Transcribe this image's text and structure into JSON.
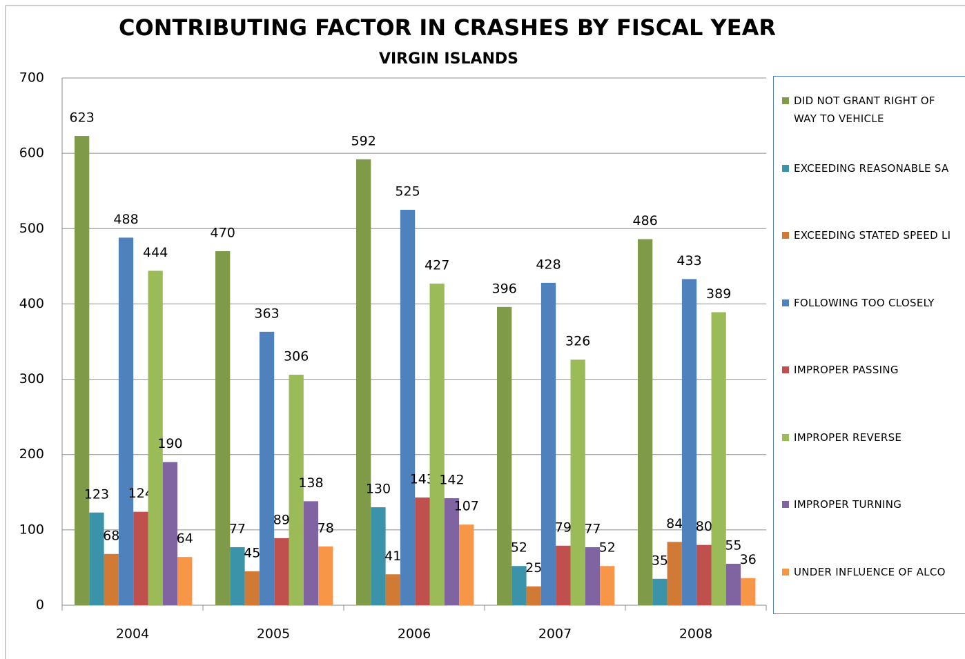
{
  "chart_data": {
    "type": "bar",
    "title": "CONTRIBUTING  FACTOR  IN CRASHES BY FISCAL YEAR",
    "subtitle": "VIRGIN ISLANDS",
    "categories": [
      "2004",
      "2005",
      "2006",
      "2007",
      "2008"
    ],
    "series": [
      {
        "name": "DID NOT GRANT RIGHT OF WAY TO VEHICLE",
        "color": "#7f9a48",
        "values": [
          623,
          470,
          592,
          396,
          486
        ]
      },
      {
        "name": "EXCEEDING REASONABLE SA",
        "color": "#3a93a8",
        "values": [
          123,
          77,
          130,
          52,
          35
        ]
      },
      {
        "name": "EXCEEDING STATED SPEED LI",
        "color": "#d07a35",
        "values": [
          68,
          45,
          41,
          25,
          84
        ]
      },
      {
        "name": "FOLLOWING TOO CLOSELY",
        "color": "#4f81bd",
        "values": [
          488,
          363,
          525,
          428,
          433
        ]
      },
      {
        "name": "IMPROPER PASSING",
        "color": "#c0504d",
        "values": [
          124,
          89,
          143,
          79,
          80
        ]
      },
      {
        "name": "IMPROPER REVERSE",
        "color": "#9bbb59",
        "values": [
          444,
          306,
          427,
          326,
          389
        ]
      },
      {
        "name": "IMPROPER TURNING",
        "color": "#8064a2",
        "values": [
          190,
          138,
          142,
          77,
          55
        ]
      },
      {
        "name": "UNDER INFLUENCE OF ALCO",
        "color": "#f79646",
        "values": [
          64,
          78,
          107,
          52,
          36
        ]
      }
    ],
    "ylim": [
      0,
      700
    ],
    "yticks": [
      0,
      100,
      200,
      300,
      400,
      500,
      600,
      700
    ],
    "grid": true,
    "legend": "right"
  }
}
